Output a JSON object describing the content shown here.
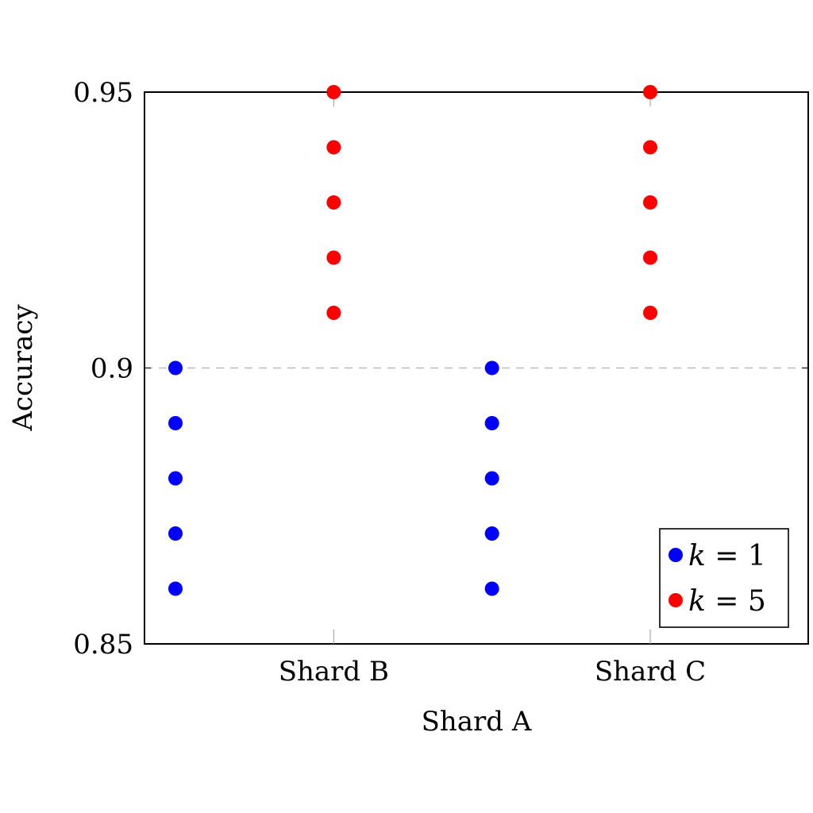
{
  "chart_data": {
    "type": "scatter",
    "title": "",
    "xlabel": "Shard A",
    "ylabel": "Accuracy",
    "x_tick_labels": [
      "Shard B",
      "Shard C"
    ],
    "y_tick_labels": [
      "0.85",
      "0.9",
      "0.95"
    ],
    "y_ticks": [
      0.85,
      0.9,
      0.95
    ],
    "ylim": [
      0.85,
      0.95
    ],
    "xlim": [
      0,
      2
    ],
    "reference_line": {
      "y": 0.9,
      "style": "dashed",
      "color": "#bbbbbb"
    },
    "grid": false,
    "legend_position": "bottom-right",
    "series": [
      {
        "name": "k = 1",
        "legend_var": "k",
        "legend_rest": " = 1",
        "color": "#0000ff",
        "x": [
          0,
          0,
          0,
          0,
          0,
          1,
          1,
          1,
          1,
          1
        ],
        "y": [
          0.9,
          0.89,
          0.88,
          0.87,
          0.86,
          0.9,
          0.89,
          0.88,
          0.87,
          0.86
        ]
      },
      {
        "name": "k = 5",
        "legend_var": "k",
        "legend_rest": " = 5",
        "color": "#ff0000",
        "x": [
          0.5,
          0.5,
          0.5,
          0.5,
          0.5,
          1.5,
          1.5,
          1.5,
          1.5,
          1.5
        ],
        "y": [
          0.95,
          0.94,
          0.93,
          0.92,
          0.91,
          0.95,
          0.94,
          0.93,
          0.92,
          0.91
        ]
      }
    ]
  }
}
